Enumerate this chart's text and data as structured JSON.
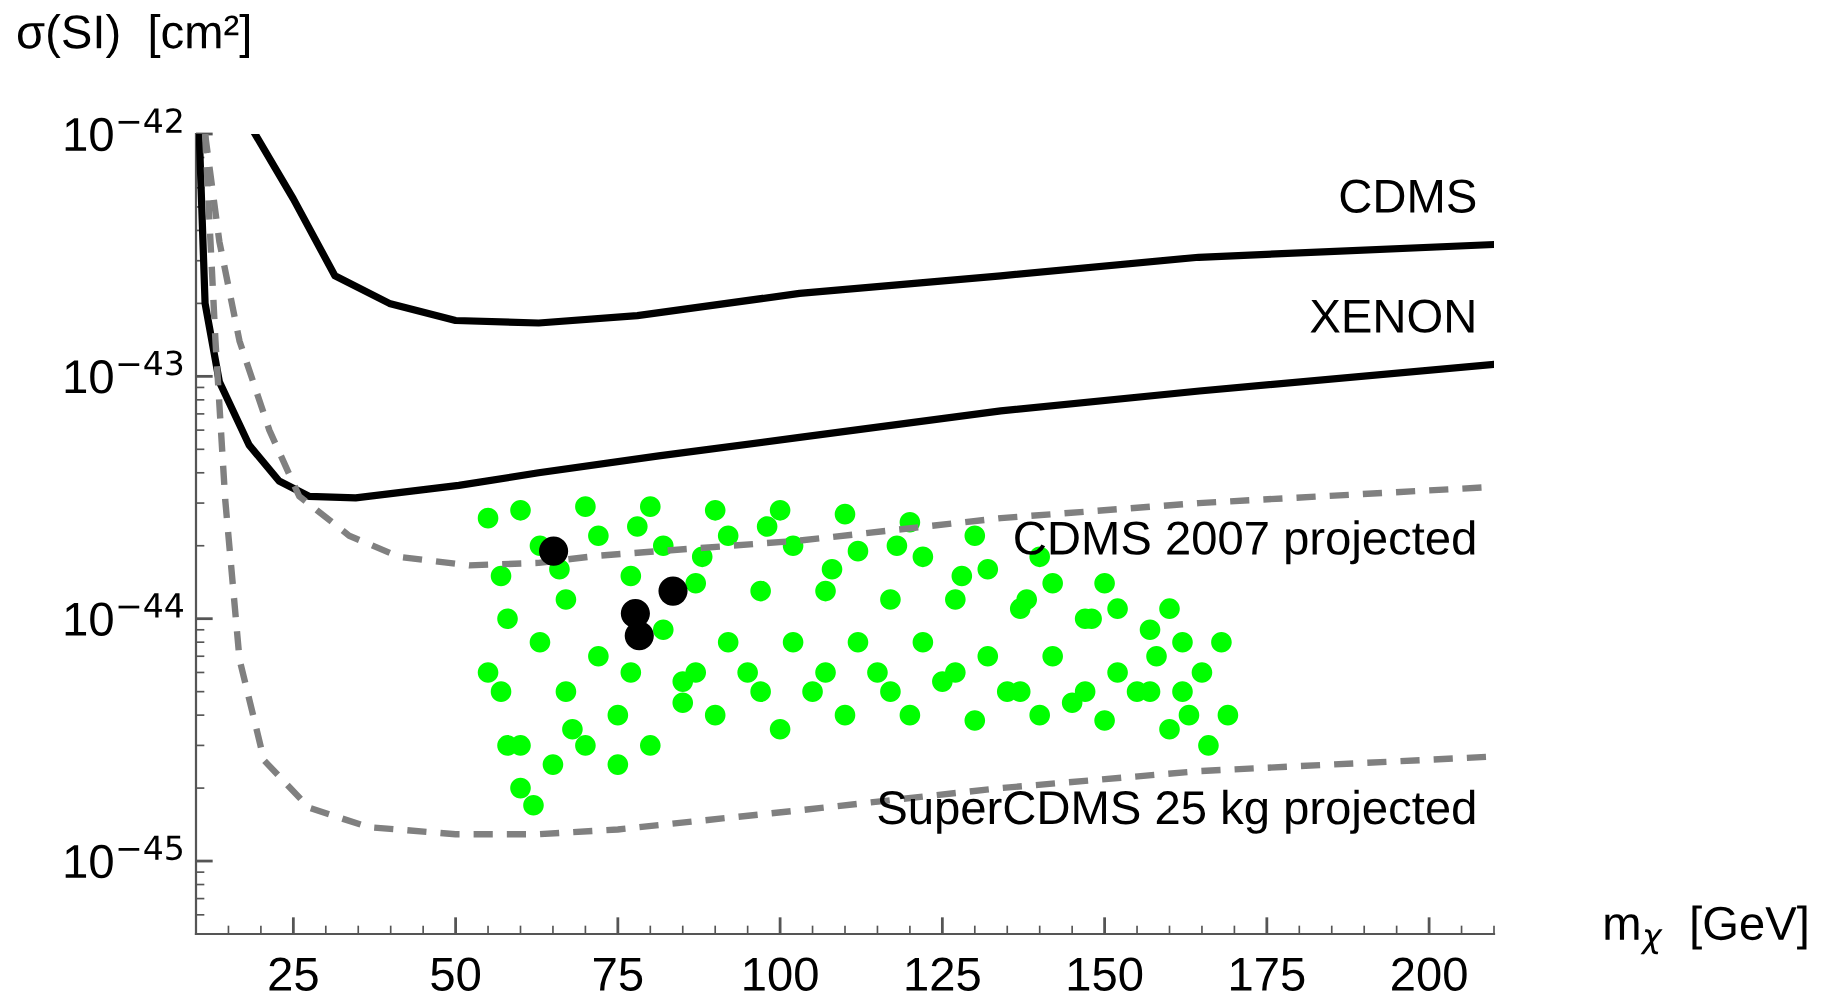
{
  "chart_data": {
    "type": "line",
    "xlabel": "m$_{χ}$  [GeV]",
    "ylabel": "σ(SI)  [cm²]",
    "log": "y",
    "grid": false,
    "legend": false,
    "xlim": [
      10,
      210
    ],
    "xticks": [
      25,
      50,
      75,
      100,
      125,
      150,
      175,
      200
    ],
    "ylim": [
      5e-46,
      1e-42
    ],
    "yticks": [
      {
        "value": 1e-42,
        "label": "10$^{−42}$"
      },
      {
        "value": 1e-43,
        "label": "10$^{−43}$"
      },
      {
        "value": 1e-44,
        "label": "10$^{−44}$"
      },
      {
        "value": 1e-45,
        "label": "10$^{−45}$"
      }
    ],
    "series": [
      {
        "type": "scatter",
        "color": "#00ff00",
        "marker": "circle",
        "x": [
          55,
          60,
          70,
          80,
          90,
          100,
          110,
          120,
          130,
          140,
          150,
          160,
          168,
          55,
          58,
          60,
          62,
          65,
          70,
          75,
          80,
          85,
          90,
          100,
          110,
          120,
          130,
          140,
          150,
          160,
          166,
          169,
          57,
          57,
          63,
          63,
          67,
          67,
          72,
          72,
          77,
          77,
          82,
          82,
          87,
          87,
          92,
          92,
          97,
          97,
          102,
          102,
          107,
          107,
          112,
          112,
          117,
          117,
          122,
          122,
          127,
          127,
          132,
          132,
          137,
          137,
          142,
          142,
          147,
          147,
          152,
          152,
          157,
          157,
          162,
          162,
          165,
          60,
          68,
          75,
          85,
          95,
          105,
          115,
          125,
          135,
          145,
          155,
          163,
          58,
          66,
          78,
          88,
          98,
          108,
          118,
          128,
          138,
          148,
          158
        ],
        "values": [
          2.6e-44,
          2.8e-44,
          2.9e-44,
          2.9e-44,
          2.8e-44,
          2.8e-44,
          2.7e-44,
          2.5e-44,
          2.2e-44,
          1.8e-44,
          1.4e-44,
          1.1e-44,
          8e-45,
          6e-45,
          3e-45,
          2e-45,
          1.7e-45,
          2.5e-45,
          3e-45,
          4e-45,
          3e-45,
          4.5e-45,
          4e-45,
          3.5e-45,
          4e-45,
          4e-45,
          3.8e-45,
          4e-45,
          3.8e-45,
          3.5e-45,
          3e-45,
          4e-45,
          1.5e-44,
          5e-45,
          2e-44,
          8e-45,
          1.2e-44,
          5e-45,
          2.2e-44,
          7e-45,
          1.5e-44,
          6e-45,
          2e-44,
          9e-45,
          1.4e-44,
          6e-45,
          2.2e-44,
          8e-45,
          1.3e-44,
          5e-45,
          2e-44,
          8e-45,
          1.3e-44,
          6e-45,
          1.9e-44,
          8e-45,
          1.2e-44,
          5e-45,
          1.8e-44,
          8e-45,
          1.2e-44,
          6e-45,
          1.6e-44,
          7e-45,
          1.1e-44,
          5e-45,
          1.4e-44,
          7e-45,
          1e-44,
          5e-45,
          1.1e-44,
          6e-45,
          9e-45,
          5e-45,
          8e-45,
          5e-45,
          6e-45,
          3e-45,
          3.5e-45,
          2.5e-45,
          5.5e-45,
          6e-45,
          5e-45,
          6e-45,
          5.5e-45,
          5e-45,
          4.5e-45,
          5e-45,
          4e-45,
          1e-44,
          1.6e-44,
          2.4e-44,
          1.8e-44,
          2.4e-44,
          1.6e-44,
          2e-44,
          1.5e-44,
          1.2e-44,
          1e-44,
          7e-45
        ]
      },
      {
        "type": "scatter",
        "color": "#000000",
        "marker": "circle",
        "x": [
          65.1,
          77.7,
          78.3,
          83.5
        ],
        "values": [
          1.9e-44,
          1.05e-44,
          8.5e-45,
          1.3e-44
        ]
      },
      {
        "name": "CDMS",
        "color": "#000000",
        "line_style": "solid",
        "x": [
          19.1,
          25,
          31.4,
          39.8,
          50,
          62.8,
          78,
          103,
          134,
          164.5,
          210
        ],
        "values": [
          1e-42,
          5.4e-43,
          2.6e-43,
          2e-43,
          1.7e-43,
          1.66e-43,
          1.78e-43,
          2.2e-43,
          2.6e-43,
          3.1e-43,
          3.5e-43
        ]
      },
      {
        "name": "XENON",
        "color": "#000000",
        "line_style": "solid",
        "x": [
          10.5,
          11.4,
          13.6,
          18.2,
          22.8,
          27.4,
          34.6,
          50.5,
          62.8,
          81.3,
          103,
          134,
          164.6,
          210
        ],
        "values": [
          1e-42,
          2e-43,
          9.5e-44,
          5.2e-44,
          3.7e-44,
          3.2e-44,
          3.15e-44,
          3.55e-44,
          4e-44,
          4.7e-44,
          5.6e-44,
          7.2e-44,
          8.7e-44,
          1.12e-43
        ]
      },
      {
        "name": "CDMS 2007 projected",
        "color": "#808080",
        "line_style": "dashed",
        "x": [
          11.4,
          13.6,
          16.7,
          21.3,
          25.9,
          33.6,
          41.3,
          52.1,
          62.8,
          72,
          103,
          134,
          164.5,
          210
        ],
        "values": [
          1e-42,
          3.6e-43,
          1.4e-43,
          6e-44,
          3.2e-44,
          2.2e-44,
          1.8e-44,
          1.66e-44,
          1.7e-44,
          1.82e-44,
          2.1e-44,
          2.6e-44,
          3e-44,
          3.5e-44
        ]
      },
      {
        "name": "SuperCDMS 25 kg projected",
        "color": "#808080",
        "line_style": "dashed",
        "x": [
          11.4,
          13,
          14.5,
          16.7,
          20.5,
          27.4,
          36.6,
          50,
          62.8,
          75,
          103,
          134,
          164.5,
          210
        ],
        "values": [
          1e-42,
          1.4e-43,
          3.1e-44,
          6.8e-45,
          2.6e-45,
          1.66e-45,
          1.38e-45,
          1.29e-45,
          1.29e-45,
          1.35e-45,
          1.62e-45,
          2e-45,
          2.35e-45,
          2.7e-45
        ]
      }
    ]
  }
}
